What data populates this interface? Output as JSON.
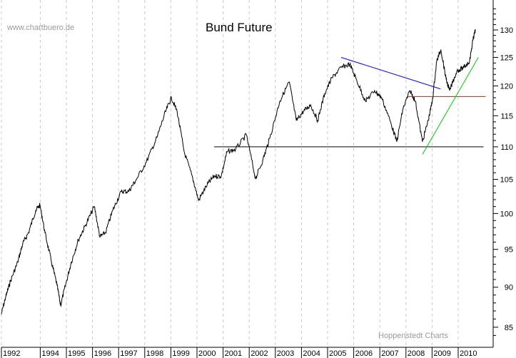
{
  "chart_data": {
    "type": "line",
    "title": "Bund Future",
    "watermark_top": "www.chartbuero.de",
    "watermark_bottom": "Hoppenstedt Charts",
    "xlabel": "",
    "ylabel": "",
    "x_tick_labels": [
      "1992",
      "1994",
      "1995",
      "1996",
      "1997",
      "1998",
      "1999",
      "2000",
      "2001",
      "2002",
      "2003",
      "2004",
      "2005",
      "2006",
      "2007",
      "2008",
      "2009",
      "2010"
    ],
    "y_tick_labels": [
      "85",
      "90",
      "95",
      "100",
      "105",
      "110",
      "115",
      "120",
      "125",
      "130"
    ],
    "y_scale": "log",
    "ylim": [
      83.5,
      134
    ],
    "xlim": [
      1992.46,
      2010.97
    ],
    "grid": "vertical dashed at year boundaries",
    "series": [
      {
        "color": "#000000",
        "points": [
          [
            1992.51,
            86.6
          ],
          [
            1992.68,
            88.8
          ],
          [
            1992.87,
            90.9
          ],
          [
            1993.14,
            93.3
          ],
          [
            1993.33,
            95.8
          ],
          [
            1993.55,
            97.3
          ],
          [
            1993.83,
            100.5
          ],
          [
            1993.99,
            101.2
          ],
          [
            1994.18,
            97.3
          ],
          [
            1994.43,
            93.3
          ],
          [
            1994.64,
            90.3
          ],
          [
            1994.78,
            87.7
          ],
          [
            1994.97,
            90.3
          ],
          [
            1995.19,
            93.3
          ],
          [
            1995.46,
            96.3
          ],
          [
            1995.74,
            98.4
          ],
          [
            1996.07,
            101.0
          ],
          [
            1996.28,
            96.7
          ],
          [
            1996.5,
            97.3
          ],
          [
            1996.78,
            100.5
          ],
          [
            1997.1,
            103.2
          ],
          [
            1997.38,
            103.2
          ],
          [
            1997.65,
            104.8
          ],
          [
            1998.06,
            107.6
          ],
          [
            1998.47,
            111.5
          ],
          [
            1998.8,
            115.7
          ],
          [
            1999.02,
            118.0
          ],
          [
            1999.24,
            115.7
          ],
          [
            1999.51,
            109.2
          ],
          [
            1999.84,
            105.1
          ],
          [
            2000.06,
            101.9
          ],
          [
            2000.39,
            104.2
          ],
          [
            2000.66,
            105.5
          ],
          [
            2000.93,
            105.5
          ],
          [
            2001.15,
            109.2
          ],
          [
            2001.48,
            109.6
          ],
          [
            2001.89,
            111.9
          ],
          [
            2002.24,
            105.1
          ],
          [
            2002.52,
            107.9
          ],
          [
            2002.79,
            111.4
          ],
          [
            2003.17,
            117.4
          ],
          [
            2003.53,
            120.7
          ],
          [
            2003.8,
            114.2
          ],
          [
            2004.07,
            115.7
          ],
          [
            2004.35,
            116.8
          ],
          [
            2004.62,
            114.2
          ],
          [
            2004.89,
            118.7
          ],
          [
            2005.17,
            121.4
          ],
          [
            2005.52,
            123.2
          ],
          [
            2005.85,
            123.8
          ],
          [
            2006.12,
            120.9
          ],
          [
            2006.45,
            117.4
          ],
          [
            2006.8,
            119.2
          ],
          [
            2007.07,
            118.0
          ],
          [
            2007.43,
            113.7
          ],
          [
            2007.65,
            110.8
          ],
          [
            2007.89,
            116.2
          ],
          [
            2008.16,
            119.2
          ],
          [
            2008.36,
            117.4
          ],
          [
            2008.63,
            110.8
          ],
          [
            2008.85,
            114.2
          ],
          [
            2009.01,
            117.4
          ],
          [
            2009.18,
            124.4
          ],
          [
            2009.34,
            126.4
          ],
          [
            2009.54,
            121.1
          ],
          [
            2009.67,
            119.2
          ],
          [
            2009.95,
            122.6
          ],
          [
            2010.22,
            123.2
          ],
          [
            2010.44,
            124.4
          ],
          [
            2010.57,
            128.3
          ],
          [
            2010.66,
            130.0
          ]
        ]
      }
    ],
    "trendlines": [
      {
        "color": "#000000",
        "from": [
          2000.66,
          110.0
        ],
        "to": [
          2010.97,
          110.0
        ]
      },
      {
        "color": "#0000ff",
        "from": [
          2005.52,
          125.0
        ],
        "to": [
          2009.32,
          119.5
        ]
      },
      {
        "color": "#ff0000",
        "from": [
          2008.09,
          118.2
        ],
        "to": [
          2011.05,
          118.2
        ]
      },
      {
        "color": "#00cc00",
        "from": [
          2008.63,
          108.8
        ],
        "to": [
          2010.77,
          125.0
        ]
      }
    ]
  }
}
